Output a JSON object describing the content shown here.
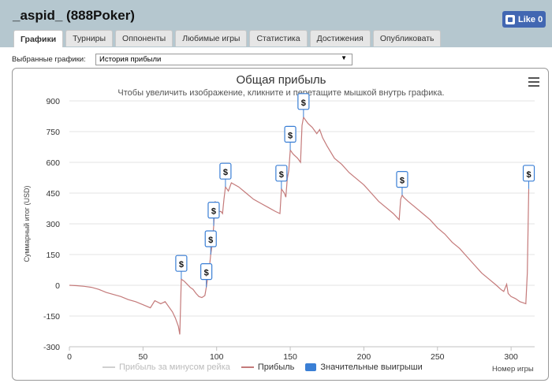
{
  "page": {
    "title": "_aspid_ (888Poker)",
    "like_label": "Like 0"
  },
  "tabs": [
    {
      "label": "Графики",
      "active": true
    },
    {
      "label": "Турниры",
      "active": false
    },
    {
      "label": "Оппоненты",
      "active": false
    },
    {
      "label": "Любимые игры",
      "active": false
    },
    {
      "label": "Статистика",
      "active": false
    },
    {
      "label": "Достижения",
      "active": false
    },
    {
      "label": "Опубликовать",
      "active": false
    }
  ],
  "selector": {
    "label": "Выбранные графики:",
    "value": "История прибыли",
    "arrow": "▼"
  },
  "chart_data": {
    "type": "line",
    "title": "Общая прибыль",
    "subtitle": "Чтобы увеличить изображение, кликните и перетащите мышкой внутрь графика.",
    "xlabel": "Номер игры",
    "ylabel": "Суммарный итог (USD)",
    "xlim": [
      0,
      316
    ],
    "ylim": [
      -300,
      900
    ],
    "x_ticks": [
      0,
      50,
      100,
      150,
      200,
      250,
      300
    ],
    "y_ticks": [
      -300,
      -150,
      0,
      150,
      300,
      450,
      600,
      750,
      900
    ],
    "grid": true,
    "legend_position": "bottom",
    "series": [
      {
        "name": "Прибыль за минусом рейка",
        "color": "#d0d0d0",
        "points": []
      },
      {
        "name": "Прибыль",
        "color": "#c47a7a",
        "points": [
          [
            0,
            0
          ],
          [
            5,
            -2
          ],
          [
            10,
            -5
          ],
          [
            15,
            -10
          ],
          [
            20,
            -20
          ],
          [
            25,
            -35
          ],
          [
            30,
            -45
          ],
          [
            35,
            -55
          ],
          [
            40,
            -70
          ],
          [
            45,
            -80
          ],
          [
            50,
            -95
          ],
          [
            55,
            -110
          ],
          [
            58,
            -75
          ],
          [
            62,
            -90
          ],
          [
            65,
            -80
          ],
          [
            70,
            -130
          ],
          [
            72,
            -160
          ],
          [
            74,
            -200
          ],
          [
            75,
            -240
          ],
          [
            76,
            30
          ],
          [
            78,
            20
          ],
          [
            80,
            5
          ],
          [
            82,
            -10
          ],
          [
            84,
            -20
          ],
          [
            86,
            -40
          ],
          [
            88,
            -55
          ],
          [
            90,
            -60
          ],
          [
            92,
            -50
          ],
          [
            93,
            -10
          ],
          [
            94,
            40
          ],
          [
            95,
            80
          ],
          [
            96,
            150
          ],
          [
            97,
            200
          ],
          [
            98,
            290
          ],
          [
            99,
            410
          ],
          [
            100,
            380
          ],
          [
            101,
            370
          ],
          [
            102,
            360
          ],
          [
            103,
            360
          ],
          [
            104,
            350
          ],
          [
            105,
            420
          ],
          [
            106,
            480
          ],
          [
            107,
            470
          ],
          [
            108,
            460
          ],
          [
            110,
            500
          ],
          [
            115,
            480
          ],
          [
            120,
            450
          ],
          [
            125,
            420
          ],
          [
            130,
            400
          ],
          [
            135,
            380
          ],
          [
            140,
            360
          ],
          [
            143,
            350
          ],
          [
            144,
            470
          ],
          [
            145,
            460
          ],
          [
            146,
            450
          ],
          [
            147,
            430
          ],
          [
            148,
            520
          ],
          [
            149,
            560
          ],
          [
            150,
            660
          ],
          [
            152,
            640
          ],
          [
            155,
            620
          ],
          [
            157,
            600
          ],
          [
            158,
            780
          ],
          [
            159,
            820
          ],
          [
            160,
            810
          ],
          [
            162,
            790
          ],
          [
            165,
            770
          ],
          [
            168,
            740
          ],
          [
            170,
            760
          ],
          [
            172,
            720
          ],
          [
            175,
            680
          ],
          [
            180,
            620
          ],
          [
            185,
            590
          ],
          [
            190,
            550
          ],
          [
            195,
            520
          ],
          [
            200,
            490
          ],
          [
            205,
            450
          ],
          [
            210,
            410
          ],
          [
            215,
            380
          ],
          [
            220,
            350
          ],
          [
            224,
            320
          ],
          [
            225,
            420
          ],
          [
            226,
            440
          ],
          [
            227,
            430
          ],
          [
            230,
            410
          ],
          [
            235,
            380
          ],
          [
            240,
            350
          ],
          [
            245,
            320
          ],
          [
            250,
            280
          ],
          [
            255,
            250
          ],
          [
            260,
            210
          ],
          [
            265,
            180
          ],
          [
            270,
            140
          ],
          [
            275,
            100
          ],
          [
            280,
            60
          ],
          [
            285,
            30
          ],
          [
            290,
            0
          ],
          [
            293,
            -20
          ],
          [
            295,
            -30
          ],
          [
            297,
            5
          ],
          [
            298,
            -40
          ],
          [
            300,
            -55
          ],
          [
            303,
            -65
          ],
          [
            306,
            -80
          ],
          [
            308,
            -85
          ],
          [
            310,
            -90
          ],
          [
            311,
            60
          ],
          [
            312,
            470
          ]
        ]
      },
      {
        "name": "Значительные выигрыши",
        "color": "#3a7fd5",
        "markers": [
          [
            76,
            30
          ],
          [
            93,
            -10
          ],
          [
            96,
            150
          ],
          [
            98,
            290
          ],
          [
            106,
            480
          ],
          [
            144,
            470
          ],
          [
            150,
            660
          ],
          [
            159,
            820
          ],
          [
            226,
            440
          ],
          [
            312,
            470
          ]
        ],
        "marker_symbol": "$"
      }
    ]
  }
}
